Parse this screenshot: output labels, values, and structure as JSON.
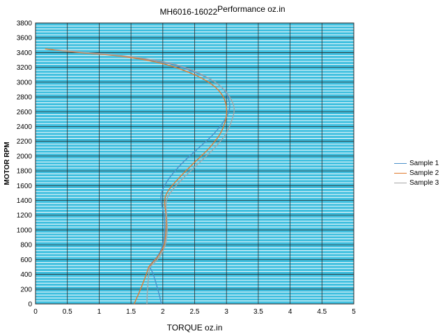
{
  "chart_data": {
    "type": "line",
    "title": "MH6016-16022",
    "title_unit": "Performance oz.in",
    "xlabel": "TORQUE  oz.in",
    "ylabel": "MOTOR RPM",
    "xlim": [
      0,
      5
    ],
    "ylim": [
      0,
      3800
    ],
    "x_ticks": [
      "0",
      "0.5",
      "1",
      "1.5",
      "2",
      "2.5",
      "3",
      "3.5",
      "4",
      "4.5",
      "5"
    ],
    "y_ticks": [
      "0",
      "200",
      "400",
      "600",
      "800",
      "1000",
      "1200",
      "1400",
      "1600",
      "1800",
      "2000",
      "2200",
      "2400",
      "2600",
      "2800",
      "3000",
      "3200",
      "3400",
      "3600",
      "3800"
    ],
    "major_grid": true,
    "minor_grid": true,
    "legend_position": "right",
    "plot_background": "#3fbfdf",
    "series": [
      {
        "name": "Sample 1",
        "color": "#4a90c9",
        "x": [
          1.98,
          1.92,
          1.85,
          1.8,
          1.82,
          1.92,
          2.0,
          2.03,
          2.02,
          1.98,
          1.97,
          2.0,
          2.1,
          2.3,
          2.55,
          2.8,
          2.98,
          3.05,
          3.02,
          2.9,
          2.6,
          2.1,
          1.4,
          0.75,
          0.35
        ],
        "y": [
          0,
          200,
          400,
          500,
          550,
          650,
          800,
          1000,
          1200,
          1350,
          1450,
          1550,
          1700,
          1900,
          2100,
          2300,
          2500,
          2650,
          2800,
          2950,
          3100,
          3250,
          3350,
          3400,
          3430
        ]
      },
      {
        "name": "Sample 2",
        "color": "#e07b2f",
        "x": [
          1.55,
          1.65,
          1.74,
          1.78,
          1.83,
          1.93,
          2.02,
          2.05,
          2.05,
          2.03,
          2.04,
          2.1,
          2.25,
          2.48,
          2.72,
          2.9,
          2.99,
          3.0,
          2.95,
          2.8,
          2.5,
          2.0,
          1.35,
          0.7,
          0.15
        ],
        "y": [
          0,
          200,
          400,
          500,
          550,
          650,
          800,
          1000,
          1200,
          1350,
          1450,
          1550,
          1700,
          1900,
          2100,
          2300,
          2500,
          2650,
          2800,
          2950,
          3100,
          3250,
          3350,
          3400,
          3450
        ]
      },
      {
        "name": "Sample 3",
        "color": "#a5a5a5",
        "x": [
          1.75,
          1.76,
          1.78,
          1.8,
          1.86,
          1.96,
          2.04,
          2.07,
          2.06,
          2.05,
          2.08,
          2.16,
          2.32,
          2.56,
          2.8,
          2.99,
          3.09,
          3.12,
          3.05,
          2.9,
          2.62,
          2.15,
          1.45,
          0.8,
          0.3
        ],
        "y": [
          0,
          200,
          400,
          500,
          550,
          650,
          800,
          1000,
          1200,
          1350,
          1450,
          1550,
          1700,
          1900,
          2100,
          2300,
          2500,
          2650,
          2800,
          2950,
          3100,
          3250,
          3350,
          3400,
          3440
        ]
      }
    ]
  }
}
